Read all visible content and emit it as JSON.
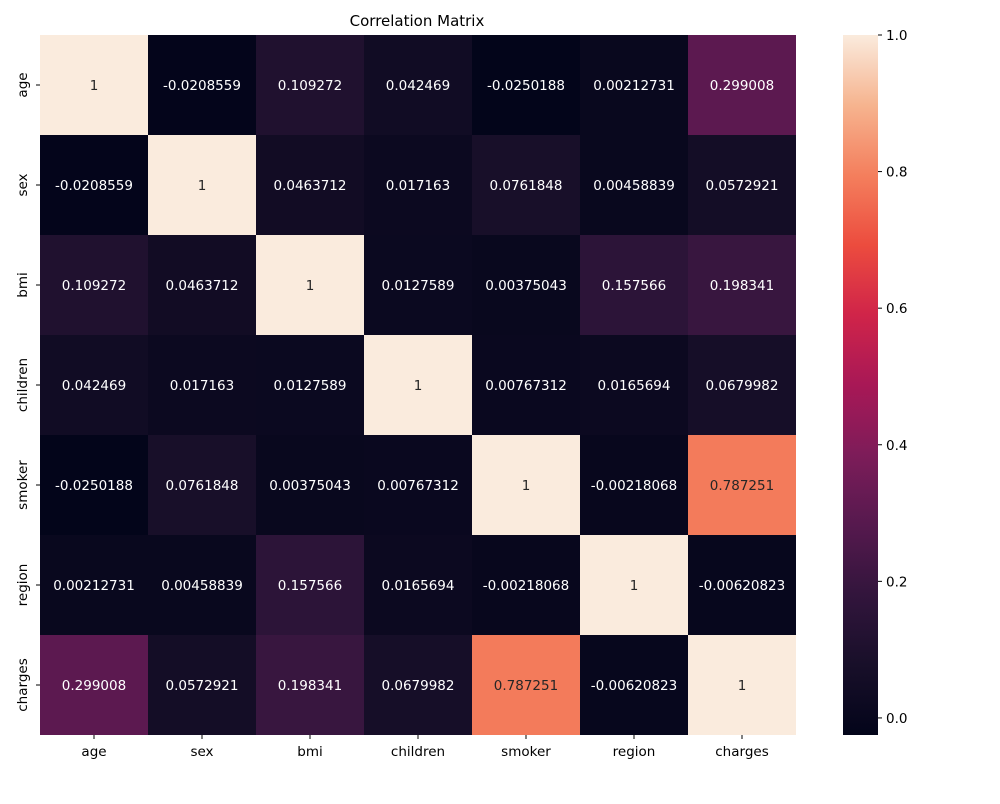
{
  "chart_data": {
    "type": "heatmap",
    "title": "Correlation Matrix",
    "x_labels": [
      "age",
      "sex",
      "bmi",
      "children",
      "smoker",
      "region",
      "charges"
    ],
    "y_labels": [
      "age",
      "sex",
      "bmi",
      "children",
      "smoker",
      "region",
      "charges"
    ],
    "values": [
      [
        "1",
        "-0.0208559",
        "0.109272",
        "0.042469",
        "-0.0250188",
        "0.00212731",
        "0.299008"
      ],
      [
        "-0.0208559",
        "1",
        "0.0463712",
        "0.017163",
        "0.0761848",
        "0.00458839",
        "0.0572921"
      ],
      [
        "0.109272",
        "0.0463712",
        "1",
        "0.0127589",
        "0.00375043",
        "0.157566",
        "0.198341"
      ],
      [
        "0.042469",
        "0.017163",
        "0.0127589",
        "1",
        "0.00767312",
        "0.0165694",
        "0.0679982"
      ],
      [
        "-0.0250188",
        "0.0761848",
        "0.00375043",
        "0.00767312",
        "1",
        "-0.00218068",
        "0.787251"
      ],
      [
        "0.00212731",
        "0.00458839",
        "0.157566",
        "0.0165694",
        "-0.00218068",
        "1",
        "-0.00620823"
      ],
      [
        "0.299008",
        "0.0572921",
        "0.198341",
        "0.0679982",
        "0.787251",
        "-0.00620823",
        "1"
      ]
    ],
    "colorbar": {
      "range": [
        -0.025,
        1.0
      ],
      "ticks": [
        "0.0",
        "0.2",
        "0.4",
        "0.6",
        "0.8",
        "1.0"
      ],
      "colormap": "rocket"
    }
  }
}
